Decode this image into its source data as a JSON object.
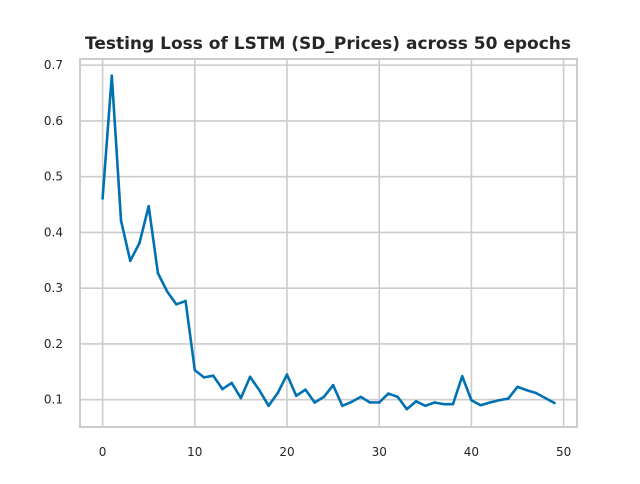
{
  "chart_data": {
    "type": "line",
    "title": "Testing Loss of LSTM (SD_Prices) across 50 epochs",
    "xlabel": "",
    "ylabel": "",
    "xlim": [
      -2.45,
      51.45
    ],
    "ylim": [
      0.051,
      0.711
    ],
    "xticks": [
      0,
      10,
      20,
      30,
      40,
      50
    ],
    "yticks": [
      0.1,
      0.2,
      0.3,
      0.4,
      0.5,
      0.6,
      0.7
    ],
    "grid": true,
    "legend": "none",
    "series": [
      {
        "color": "#0072b2",
        "x": [
          0,
          1,
          2,
          3,
          4,
          5,
          6,
          7,
          8,
          9,
          10,
          11,
          12,
          13,
          14,
          15,
          16,
          17,
          18,
          19,
          20,
          21,
          22,
          23,
          24,
          25,
          26,
          27,
          28,
          29,
          30,
          31,
          32,
          33,
          34,
          35,
          36,
          37,
          38,
          39,
          40,
          41,
          42,
          43,
          44,
          45,
          46,
          47,
          48,
          49
        ],
        "y": [
          0.461,
          0.681,
          0.421,
          0.349,
          0.381,
          0.447,
          0.327,
          0.294,
          0.271,
          0.277,
          0.153,
          0.14,
          0.143,
          0.119,
          0.13,
          0.103,
          0.141,
          0.117,
          0.089,
          0.112,
          0.145,
          0.107,
          0.118,
          0.095,
          0.105,
          0.126,
          0.089,
          0.096,
          0.105,
          0.095,
          0.095,
          0.111,
          0.105,
          0.083,
          0.097,
          0.089,
          0.095,
          0.092,
          0.092,
          0.142,
          0.099,
          0.09,
          0.095,
          0.099,
          0.102,
          0.123,
          0.117,
          0.112,
          0.103,
          0.094
        ]
      }
    ]
  }
}
